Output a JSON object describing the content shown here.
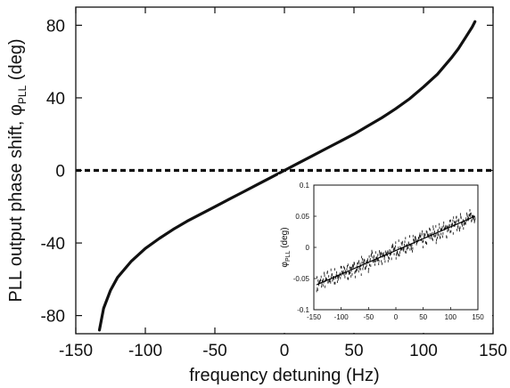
{
  "chart_data": [
    {
      "type": "line",
      "xlabel": "frequency detuning (Hz)",
      "ylabel_main": "PLL output phase shift, φ",
      "ylabel_sub": "PLL",
      "ylabel_unit": " (deg)",
      "xlim": [
        -150,
        150
      ],
      "ylim": [
        -90,
        90
      ],
      "xticks": [
        -150,
        -100,
        -50,
        0,
        50,
        100,
        150
      ],
      "xtick_labels": [
        "-150",
        "-100",
        "-50",
        "0",
        "50",
        "100",
        "150"
      ],
      "yticks": [
        -80,
        -40,
        0,
        40,
        80
      ],
      "ytick_labels": [
        "-80",
        "-40",
        "0",
        "40",
        "80"
      ],
      "series": [
        {
          "style": "solid",
          "x": [
            -133,
            -130,
            -125,
            -120,
            -110,
            -100,
            -90,
            -80,
            -70,
            -60,
            -50,
            -40,
            -30,
            -20,
            -10,
            0,
            10,
            20,
            30,
            40,
            50,
            60,
            70,
            80,
            90,
            100,
            110,
            120,
            125,
            130,
            135,
            137
          ],
          "y": [
            -88,
            -76,
            -66,
            -59,
            -50,
            -43,
            -37.5,
            -32.5,
            -28,
            -24,
            -20,
            -16,
            -12,
            -8,
            -4,
            0,
            4,
            8,
            12,
            16,
            20,
            24.5,
            29,
            34,
            39.5,
            46,
            53,
            62,
            67,
            73,
            79,
            82
          ]
        },
        {
          "style": "dashed",
          "x": [
            -150,
            150
          ],
          "y": [
            0,
            0
          ]
        }
      ]
    },
    {
      "type": "scatter",
      "inset": true,
      "xlabel": "",
      "ylabel_main": "φ",
      "ylabel_sub": "PLL",
      "ylabel_unit": " (deg)",
      "xlim": [
        -150,
        150
      ],
      "ylim": [
        -0.1,
        0.1
      ],
      "xticks": [
        -150,
        -100,
        -50,
        0,
        50,
        100,
        150
      ],
      "xtick_labels": [
        "-150",
        "-100",
        "-50",
        "0",
        "50",
        "100",
        "150"
      ],
      "yticks": [
        -0.1,
        -0.05,
        0,
        0.05,
        0.1
      ],
      "ytick_labels": [
        "-0.1",
        "-0.05",
        "0",
        "0.05",
        "0.1"
      ],
      "trend": {
        "x": [
          -145,
          145
        ],
        "y": [
          -0.06,
          0.05
        ]
      },
      "spread": 0.02
    }
  ]
}
